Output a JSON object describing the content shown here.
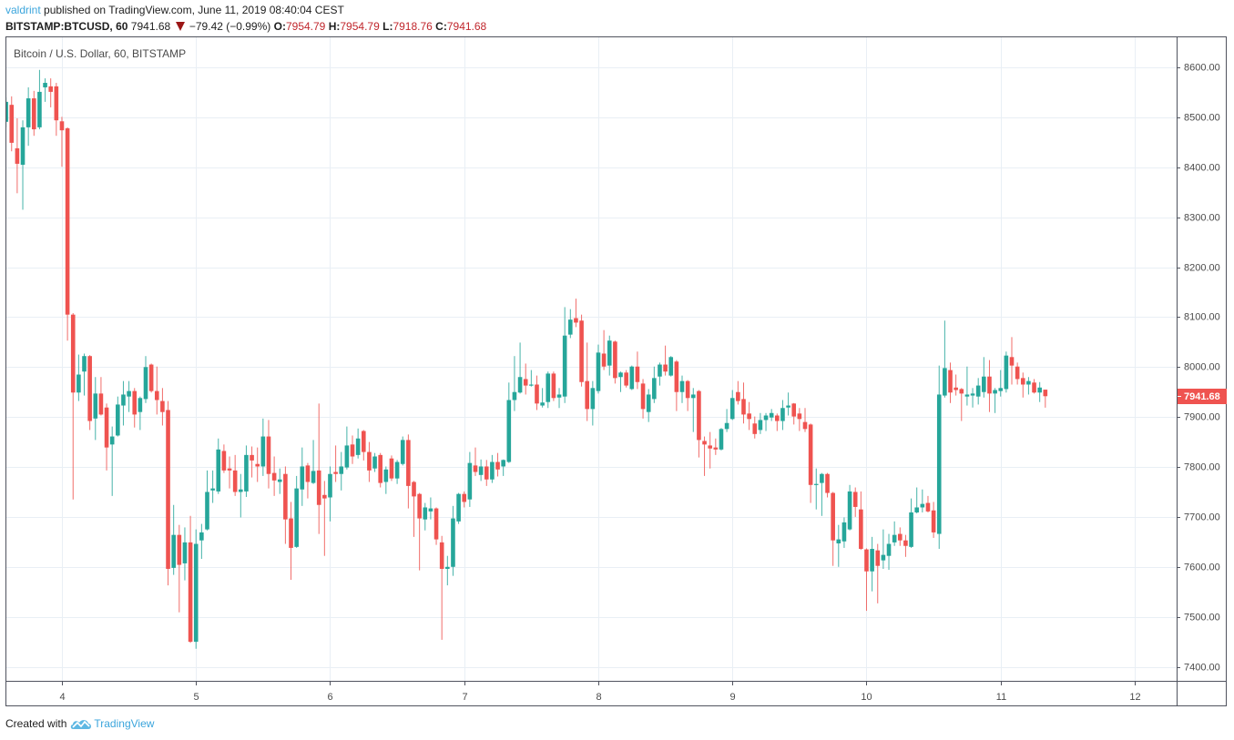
{
  "header": {
    "author": "valdrint",
    "published_text": " published on TradingView.com, June 11, 2019 08:40:04 CEST",
    "symbol": "BITSTAMP:BTCUSD, 60",
    "last_price": "7941.68",
    "change_icon": "down-triangle-icon",
    "change": "−79.42 (−0.99%)",
    "ohlc": [
      {
        "label": "O:",
        "value": "7954.79"
      },
      {
        "label": "H:",
        "value": "7954.79"
      },
      {
        "label": "L:",
        "value": "7918.76"
      },
      {
        "label": "C:",
        "value": "7941.68"
      }
    ]
  },
  "chart": {
    "title": "Bitcoin / U.S. Dollar, 60, BITSTAMP",
    "price_label": "7941.68"
  },
  "footer": {
    "created_with": "Created with",
    "brand_icon": "tradingview-logo-icon",
    "brand": "TradingView"
  },
  "colors": {
    "up": "#26a69a",
    "down": "#ef5350",
    "grid": "#e9eff5",
    "frame": "#50535e",
    "author": "#3ba5dc",
    "value_red": "#c0262c",
    "triangle": "#9b1616",
    "price_tag_bg": "#ef5350"
  },
  "chart_data": {
    "type": "candlestick",
    "title": "Bitcoin / U.S. Dollar, 60, BITSTAMP",
    "symbol": "BITSTAMP:BTCUSD",
    "interval": "60",
    "xlabel": "",
    "ylabel": "",
    "ylim": [
      7370,
      8662
    ],
    "xlim": [
      -0.1,
      209.5
    ],
    "grid": true,
    "legend": "none",
    "last_price": 7941.68,
    "y_ticks": [
      {
        "label": "8600.00",
        "value": 8600
      },
      {
        "label": "8500.00",
        "value": 8500
      },
      {
        "label": "8400.00",
        "value": 8400
      },
      {
        "label": "8300.00",
        "value": 8300
      },
      {
        "label": "8200.00",
        "value": 8200
      },
      {
        "label": "8100.00",
        "value": 8100
      },
      {
        "label": "8000.00",
        "value": 8000
      },
      {
        "label": "7900.00",
        "value": 7900
      },
      {
        "label": "7800.00",
        "value": 7800
      },
      {
        "label": "7700.00",
        "value": 7700
      },
      {
        "label": "7600.00",
        "value": 7600
      },
      {
        "label": "7500.00",
        "value": 7500
      },
      {
        "label": "7400.00",
        "value": 7400
      }
    ],
    "x_ticks": [
      {
        "label": "4",
        "index": 10
      },
      {
        "label": "5",
        "index": 34
      },
      {
        "label": "6",
        "index": 58
      },
      {
        "label": "7",
        "index": 82
      },
      {
        "label": "8",
        "index": 106
      },
      {
        "label": "9",
        "index": 130
      },
      {
        "label": "10",
        "index": 154
      },
      {
        "label": "11",
        "index": 178
      },
      {
        "label": "12",
        "index": 202
      }
    ],
    "candle_fields": [
      "open",
      "high",
      "low",
      "close"
    ],
    "candles": [
      [
        8491,
        8540,
        8480,
        8531
      ],
      [
        8525,
        8542,
        8432,
        8449
      ],
      [
        8438,
        8498,
        8348,
        8407
      ],
      [
        8405,
        8494,
        8315,
        8480
      ],
      [
        8480,
        8560,
        8443,
        8538
      ],
      [
        8538,
        8553,
        8463,
        8476
      ],
      [
        8480,
        8595,
        8476,
        8551
      ],
      [
        8560,
        8578,
        8531,
        8569
      ],
      [
        8562,
        8578,
        8520,
        8551
      ],
      [
        8562,
        8569,
        8463,
        8494
      ],
      [
        8492,
        8501,
        8401,
        8474
      ],
      [
        8478,
        8480,
        8053,
        8105
      ],
      [
        8105,
        8108,
        7735,
        7949
      ],
      [
        7949,
        8025,
        7932,
        7985
      ],
      [
        7991,
        8027,
        7943,
        8022
      ],
      [
        8022,
        8024,
        7874,
        7892
      ],
      [
        7897,
        7980,
        7854,
        7947
      ],
      [
        7947,
        7980,
        7903,
        7905
      ],
      [
        7919,
        7927,
        7793,
        7839
      ],
      [
        7845,
        7881,
        7742,
        7861
      ],
      [
        7863,
        7941,
        7861,
        7925
      ],
      [
        7923,
        7972,
        7883,
        7945
      ],
      [
        7941,
        7972,
        7910,
        7952
      ],
      [
        7952,
        7958,
        7879,
        7905
      ],
      [
        7910,
        7941,
        7874,
        7938
      ],
      [
        7936,
        8022,
        7928,
        8000
      ],
      [
        8005,
        8007,
        7949,
        7952
      ],
      [
        7952,
        8001,
        7905,
        7934
      ],
      [
        7932,
        7958,
        7883,
        7910
      ],
      [
        7914,
        7932,
        7563,
        7596
      ],
      [
        7598,
        7724,
        7584,
        7664
      ],
      [
        7664,
        7684,
        7509,
        7604
      ],
      [
        7607,
        7679,
        7573,
        7649
      ],
      [
        7649,
        7702,
        7448,
        7450
      ],
      [
        7450,
        7675,
        7436,
        7646
      ],
      [
        7653,
        7686,
        7616,
        7669
      ],
      [
        7675,
        7793,
        7673,
        7750
      ],
      [
        7753,
        7793,
        7728,
        7757
      ],
      [
        7751,
        7857,
        7746,
        7835
      ],
      [
        7832,
        7845,
        7788,
        7793
      ],
      [
        7797,
        7821,
        7757,
        7793
      ],
      [
        7793,
        7824,
        7742,
        7750
      ],
      [
        7750,
        7786,
        7699,
        7755
      ],
      [
        7751,
        7843,
        7740,
        7824
      ],
      [
        7824,
        7841,
        7779,
        7813
      ],
      [
        7806,
        7839,
        7770,
        7801
      ],
      [
        7801,
        7897,
        7782,
        7861
      ],
      [
        7861,
        7894,
        7757,
        7786
      ],
      [
        7788,
        7821,
        7742,
        7773
      ],
      [
        7770,
        7797,
        7746,
        7775
      ],
      [
        7786,
        7801,
        7646,
        7695
      ],
      [
        7697,
        7730,
        7574,
        7638
      ],
      [
        7640,
        7782,
        7638,
        7757
      ],
      [
        7755,
        7839,
        7722,
        7801
      ],
      [
        7803,
        7808,
        7737,
        7770
      ],
      [
        7768,
        7854,
        7766,
        7792
      ],
      [
        7793,
        7927,
        7666,
        7724
      ],
      [
        7744,
        7772,
        7622,
        7737
      ],
      [
        7739,
        7801,
        7691,
        7786
      ],
      [
        7790,
        7843,
        7770,
        7786
      ],
      [
        7786,
        7830,
        7753,
        7801
      ],
      [
        7799,
        7881,
        7795,
        7843
      ],
      [
        7845,
        7863,
        7806,
        7821
      ],
      [
        7824,
        7877,
        7817,
        7857
      ],
      [
        7872,
        7874,
        7813,
        7830
      ],
      [
        7830,
        7850,
        7770,
        7793
      ],
      [
        7797,
        7828,
        7790,
        7821
      ],
      [
        7824,
        7828,
        7759,
        7768
      ],
      [
        7770,
        7801,
        7746,
        7795
      ],
      [
        7817,
        7823,
        7772,
        7777
      ],
      [
        7777,
        7814,
        7766,
        7810
      ],
      [
        7806,
        7861,
        7803,
        7854
      ],
      [
        7854,
        7865,
        7717,
        7762
      ],
      [
        7770,
        7772,
        7660,
        7741
      ],
      [
        7746,
        7748,
        7593,
        7697
      ],
      [
        7695,
        7728,
        7673,
        7719
      ],
      [
        7711,
        7739,
        7695,
        7717
      ],
      [
        7717,
        7719,
        7644,
        7655
      ],
      [
        7649,
        7662,
        7454,
        7596
      ],
      [
        7596,
        7622,
        7563,
        7600
      ],
      [
        7600,
        7722,
        7582,
        7697
      ],
      [
        7691,
        7748,
        7686,
        7746
      ],
      [
        7746,
        7751,
        7719,
        7730
      ],
      [
        7735,
        7830,
        7720,
        7808
      ],
      [
        7803,
        7839,
        7782,
        7790
      ],
      [
        7784,
        7815,
        7772,
        7801
      ],
      [
        7801,
        7814,
        7762,
        7775
      ],
      [
        7775,
        7824,
        7768,
        7810
      ],
      [
        7810,
        7828,
        7781,
        7795
      ],
      [
        7801,
        7815,
        7782,
        7814
      ],
      [
        7810,
        7969,
        7808,
        7934
      ],
      [
        7934,
        8022,
        7912,
        7950
      ],
      [
        7949,
        8049,
        7947,
        7980
      ],
      [
        7976,
        8007,
        7945,
        7963
      ],
      [
        7963,
        7994,
        7961,
        7965
      ],
      [
        7965,
        7983,
        7914,
        7927
      ],
      [
        7923,
        7958,
        7919,
        7929
      ],
      [
        7930,
        7991,
        7918,
        7987
      ],
      [
        7987,
        7991,
        7932,
        7938
      ],
      [
        7939,
        7958,
        7918,
        7945
      ],
      [
        7941,
        8120,
        7928,
        8063
      ],
      [
        8065,
        8116,
        8058,
        8095
      ],
      [
        8098,
        8137,
        8080,
        8089
      ],
      [
        8093,
        8105,
        7961,
        7970
      ],
      [
        7972,
        8049,
        7892,
        7916
      ],
      [
        7916,
        7972,
        7883,
        7958
      ],
      [
        7952,
        8045,
        7947,
        8029
      ],
      [
        8027,
        8074,
        7994,
        8001
      ],
      [
        8003,
        8063,
        7983,
        8053
      ],
      [
        8051,
        8053,
        7967,
        7978
      ],
      [
        7980,
        7991,
        7950,
        7989
      ],
      [
        7989,
        7994,
        7959,
        7963
      ],
      [
        7956,
        8003,
        7954,
        8001
      ],
      [
        8001,
        8031,
        7956,
        7970
      ],
      [
        7967,
        7976,
        7897,
        7916
      ],
      [
        7910,
        7956,
        7890,
        7945
      ],
      [
        7936,
        8001,
        7928,
        7978
      ],
      [
        7981,
        8009,
        7963,
        8005
      ],
      [
        8005,
        8043,
        7983,
        7991
      ],
      [
        7983,
        8022,
        7981,
        8020
      ],
      [
        8011,
        8014,
        7912,
        7950
      ],
      [
        7950,
        7983,
        7928,
        7972
      ],
      [
        7972,
        7974,
        7912,
        7938
      ],
      [
        7938,
        7958,
        7870,
        7945
      ],
      [
        7952,
        7954,
        7819,
        7854
      ],
      [
        7852,
        7861,
        7782,
        7845
      ],
      [
        7843,
        7870,
        7797,
        7837
      ],
      [
        7839,
        7857,
        7824,
        7835
      ],
      [
        7835,
        7878,
        7833,
        7876
      ],
      [
        7876,
        7916,
        7870,
        7888
      ],
      [
        7896,
        7954,
        7894,
        7938
      ],
      [
        7950,
        7972,
        7925,
        7932
      ],
      [
        7936,
        7969,
        7887,
        7905
      ],
      [
        7907,
        7930,
        7874,
        7896
      ],
      [
        7887,
        7901,
        7857,
        7866
      ],
      [
        7874,
        7908,
        7866,
        7894
      ],
      [
        7894,
        7908,
        7872,
        7903
      ],
      [
        7899,
        7916,
        7892,
        7908
      ],
      [
        7903,
        7907,
        7872,
        7892
      ],
      [
        7892,
        7934,
        7874,
        7918
      ],
      [
        7919,
        7949,
        7903,
        7923
      ],
      [
        7927,
        7928,
        7885,
        7901
      ],
      [
        7907,
        7918,
        7872,
        7896
      ],
      [
        7890,
        7918,
        7870,
        7876
      ],
      [
        7885,
        7887,
        7728,
        7764
      ],
      [
        7764,
        7797,
        7715,
        7766
      ],
      [
        7768,
        7788,
        7702,
        7786
      ],
      [
        7786,
        7788,
        7739,
        7748
      ],
      [
        7748,
        7750,
        7602,
        7653
      ],
      [
        7647,
        7684,
        7600,
        7655
      ],
      [
        7651,
        7699,
        7638,
        7689
      ],
      [
        7675,
        7764,
        7673,
        7751
      ],
      [
        7750,
        7759,
        7700,
        7720
      ],
      [
        7715,
        7751,
        7634,
        7636
      ],
      [
        7635,
        7637,
        7512,
        7591
      ],
      [
        7591,
        7660,
        7551,
        7636
      ],
      [
        7633,
        7646,
        7527,
        7602
      ],
      [
        7613,
        7675,
        7596,
        7624
      ],
      [
        7622,
        7666,
        7594,
        7646
      ],
      [
        7649,
        7691,
        7642,
        7664
      ],
      [
        7666,
        7679,
        7642,
        7653
      ],
      [
        7653,
        7664,
        7620,
        7642
      ],
      [
        7640,
        7737,
        7638,
        7709
      ],
      [
        7709,
        7759,
        7707,
        7719
      ],
      [
        7719,
        7755,
        7709,
        7726
      ],
      [
        7728,
        7742,
        7709,
        7711
      ],
      [
        7713,
        7730,
        7658,
        7669
      ],
      [
        7666,
        8003,
        7636,
        7945
      ],
      [
        7943,
        8093,
        7939,
        7998
      ],
      [
        7994,
        8009,
        7928,
        7949
      ],
      [
        7959,
        7985,
        7943,
        7954
      ],
      [
        7956,
        7958,
        7892,
        7947
      ],
      [
        7941,
        8001,
        7923,
        7945
      ],
      [
        7943,
        7958,
        7919,
        7947
      ],
      [
        7941,
        7978,
        7925,
        7963
      ],
      [
        7950,
        8020,
        7939,
        7981
      ],
      [
        7981,
        8014,
        7910,
        7947
      ],
      [
        7947,
        7958,
        7908,
        7954
      ],
      [
        7952,
        7994,
        7941,
        7958
      ],
      [
        7956,
        8031,
        7949,
        8023
      ],
      [
        8020,
        8060,
        7965,
        8003
      ],
      [
        8001,
        8009,
        7965,
        7976
      ],
      [
        7978,
        7989,
        7939,
        7965
      ],
      [
        7965,
        7980,
        7945,
        7972
      ],
      [
        7969,
        7976,
        7947,
        7949
      ],
      [
        7949,
        7970,
        7930,
        7959
      ],
      [
        7954.79,
        7954.79,
        7918.76,
        7941.68
      ]
    ]
  }
}
